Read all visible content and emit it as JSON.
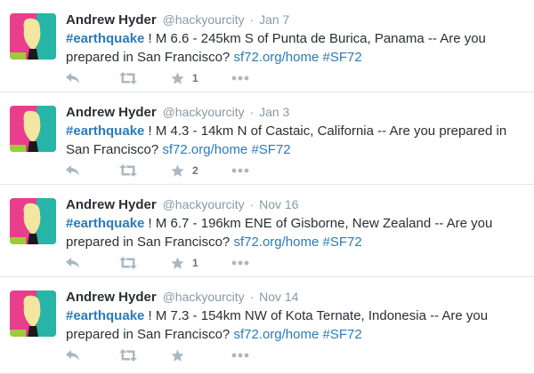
{
  "tweets": [
    {
      "name": "Andrew Hyder",
      "handle": "@hackyourcity",
      "dot": "·",
      "time": "Jan 7",
      "hashtag": "#earthquake",
      "body": " ! M 6.6 - 245km S of Punta de Burica, Panama -- Are you prepared in San Francisco? ",
      "link": "sf72.org/home",
      "space": " ",
      "tag": "#SF72",
      "favorites": "1"
    },
    {
      "name": "Andrew Hyder",
      "handle": "@hackyourcity",
      "dot": "·",
      "time": "Jan 3",
      "hashtag": "#earthquake",
      "body": " ! M 4.3 - 14km N of Castaic, California -- Are you prepared in San Francisco? ",
      "link": "sf72.org/home",
      "space": " ",
      "tag": "#SF72",
      "favorites": "2"
    },
    {
      "name": "Andrew Hyder",
      "handle": "@hackyourcity",
      "dot": "·",
      "time": "Nov 16",
      "hashtag": "#earthquake",
      "body": " ! M 6.7 - 196km ENE of Gisborne, New Zealand -- Are you prepared in San Francisco? ",
      "link": "sf72.org/home",
      "space": " ",
      "tag": "#SF72",
      "favorites": "1"
    },
    {
      "name": "Andrew Hyder",
      "handle": "@hackyourcity",
      "dot": "·",
      "time": "Nov 14",
      "hashtag": "#earthquake",
      "body": " ! M 7.3 - 154km NW of Kota Ternate, Indonesia -- Are you prepared in San Francisco? ",
      "link": "sf72.org/home",
      "space": " ",
      "tag": "#SF72",
      "favorites": ""
    }
  ],
  "icons": {
    "reply": "reply-icon",
    "retweet": "retweet-icon",
    "favorite": "star-icon",
    "more": "more-icon"
  },
  "colors": {
    "link": "#2b7bb9",
    "muted": "#8899a6",
    "action": "#aab8c2",
    "divider": "#e1e8ed"
  }
}
